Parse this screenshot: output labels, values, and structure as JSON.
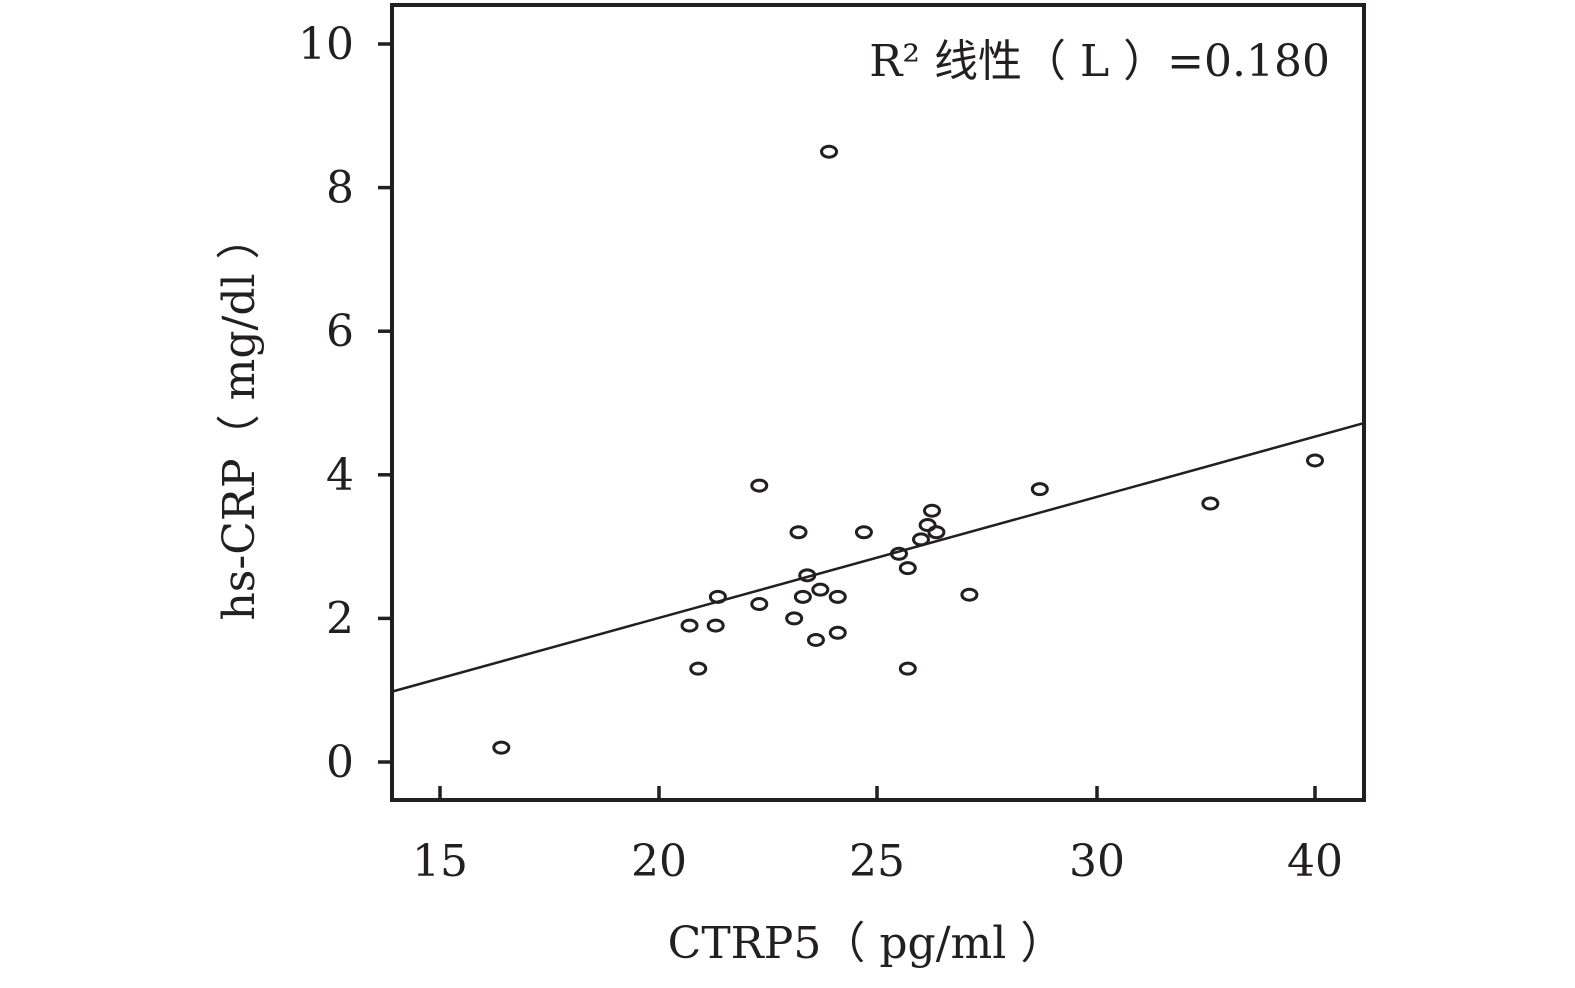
{
  "chart_data": {
    "type": "scatter",
    "xlabel": "CTRP5（ pg/ml ）",
    "ylabel": "hs-CRP（ mg/dl ）",
    "annotation": "R² 线性（ L ）=0.180",
    "grid": false,
    "x_scale": "positions 15,20,25,30,40 are equally spaced",
    "x_ticks": [
      "15",
      "20",
      "25",
      "30",
      "40"
    ],
    "y_ticks": [
      "0",
      "2",
      "4",
      "6",
      "8",
      "10"
    ],
    "ylim": [
      0,
      10
    ],
    "fit_line": {
      "type": "linear",
      "y_at_left_edge": 0.98,
      "y_at_right_edge": 4.72
    },
    "points": [
      {
        "x": 16.4,
        "y": 0.2
      },
      {
        "x": 20.7,
        "y": 1.9
      },
      {
        "x": 20.9,
        "y": 1.3
      },
      {
        "x": 21.3,
        "y": 1.9
      },
      {
        "x": 21.35,
        "y": 2.3
      },
      {
        "x": 22.3,
        "y": 2.2
      },
      {
        "x": 22.3,
        "y": 3.85
      },
      {
        "x": 23.1,
        "y": 2.0
      },
      {
        "x": 23.2,
        "y": 3.2
      },
      {
        "x": 23.3,
        "y": 2.3
      },
      {
        "x": 23.4,
        "y": 2.6
      },
      {
        "x": 23.6,
        "y": 1.7
      },
      {
        "x": 23.7,
        "y": 2.4
      },
      {
        "x": 23.9,
        "y": 8.5
      },
      {
        "x": 24.1,
        "y": 2.3
      },
      {
        "x": 24.1,
        "y": 1.8
      },
      {
        "x": 24.7,
        "y": 3.2
      },
      {
        "x": 25.5,
        "y": 2.9
      },
      {
        "x": 25.7,
        "y": 2.7
      },
      {
        "x": 25.7,
        "y": 1.3
      },
      {
        "x": 26.0,
        "y": 3.1
      },
      {
        "x": 26.15,
        "y": 3.3
      },
      {
        "x": 26.25,
        "y": 3.5
      },
      {
        "x": 26.35,
        "y": 3.2
      },
      {
        "x": 27.1,
        "y": 2.33
      },
      {
        "x": 28.7,
        "y": 3.8
      },
      {
        "x": 35.2,
        "y": 3.6
      },
      {
        "x": 40.0,
        "y": 4.2
      }
    ]
  }
}
